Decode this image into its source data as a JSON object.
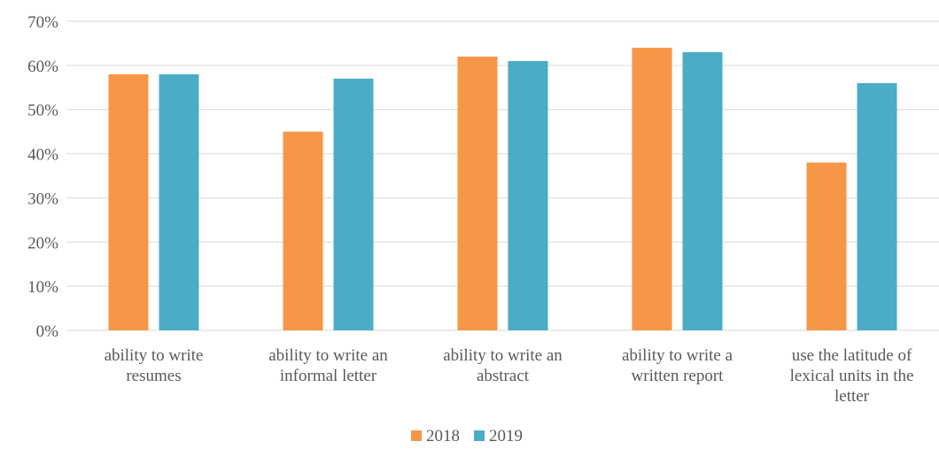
{
  "chart_data": {
    "type": "bar",
    "title": "",
    "xlabel": "",
    "ylabel": "",
    "ylim": [
      0,
      70
    ],
    "y_ticks": [
      "0%",
      "10%",
      "20%",
      "30%",
      "40%",
      "50%",
      "60%",
      "70%"
    ],
    "y_tick_values": [
      0,
      10,
      20,
      30,
      40,
      50,
      60,
      70
    ],
    "categories": [
      [
        "ability to write",
        "resumes"
      ],
      [
        "ability to write an",
        "informal letter"
      ],
      [
        "ability to write an",
        "abstract"
      ],
      [
        "ability to write a",
        "written report"
      ],
      [
        "use the latitude of",
        "lexical units in the",
        "letter"
      ]
    ],
    "series": [
      {
        "name": "2018",
        "color": "#F79646",
        "values": [
          58,
          45,
          62,
          64,
          38
        ]
      },
      {
        "name": "2019",
        "color": "#4BACC6",
        "values": [
          58,
          57,
          61,
          63,
          56
        ]
      }
    ],
    "grid": true,
    "gridline_color": "#D9D9D9",
    "legend_position": "bottom"
  }
}
